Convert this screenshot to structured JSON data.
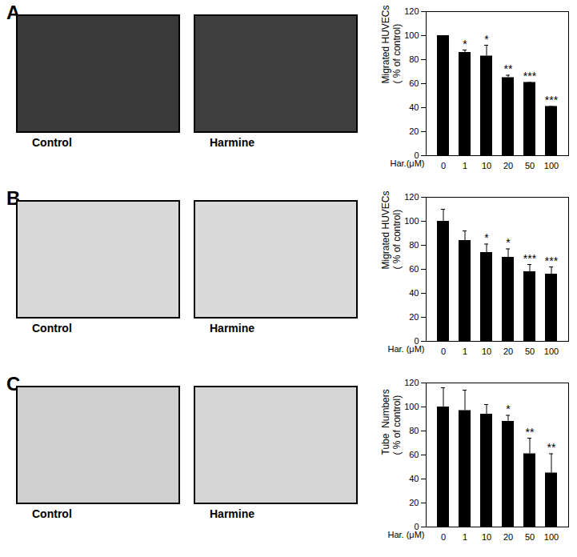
{
  "chart_data": [
    {
      "type": "bar",
      "title": "A",
      "image_labels": [
        "Control",
        "Harmine"
      ],
      "y_label": [
        "Migrated HUVECs",
        "( % of control)"
      ],
      "x_label": "Har.(μM)",
      "categories": [
        "0",
        "1",
        "10",
        "20",
        "50",
        "100"
      ],
      "values": [
        100,
        86,
        83,
        65,
        61,
        41
      ],
      "errors": [
        0,
        2,
        9,
        2,
        0,
        0
      ],
      "significance": [
        null,
        "*",
        "*",
        "**",
        "***",
        "***"
      ],
      "color": "#000000",
      "ylim": [
        0,
        120
      ],
      "yticks": [
        0,
        20,
        40,
        60,
        80,
        100,
        120
      ]
    },
    {
      "type": "bar",
      "title": "B",
      "image_labels": [
        "Control",
        "Harmine"
      ],
      "y_label": [
        "Migrated HUVECs",
        "( % of control)"
      ],
      "x_label": "Har. (μM)",
      "categories": [
        "0",
        "1",
        "10",
        "20",
        "50",
        "100"
      ],
      "values": [
        100,
        84,
        74,
        70,
        58,
        56
      ],
      "errors": [
        10,
        8,
        7,
        7,
        6,
        6
      ],
      "significance": [
        null,
        null,
        "*",
        "*",
        "***",
        "***"
      ],
      "color": "#000000",
      "ylim": [
        0,
        120
      ],
      "yticks": [
        0,
        20,
        40,
        60,
        80,
        100,
        120
      ]
    },
    {
      "type": "bar",
      "title": "C",
      "image_labels": [
        "Control",
        "Harmine"
      ],
      "y_label": [
        "Tube  Numbers",
        "( % of control)"
      ],
      "x_label": "Har. (μM)",
      "categories": [
        "0",
        "1",
        "10",
        "20",
        "50",
        "100"
      ],
      "values": [
        100,
        97,
        94,
        88,
        61,
        45
      ],
      "errors": [
        16,
        17,
        8,
        5,
        13,
        16
      ],
      "significance": [
        null,
        null,
        null,
        "*",
        "**",
        "**"
      ],
      "color": "#000000",
      "ylim": [
        0,
        120
      ],
      "yticks": [
        0,
        20,
        40,
        60,
        80,
        100,
        120
      ]
    }
  ]
}
